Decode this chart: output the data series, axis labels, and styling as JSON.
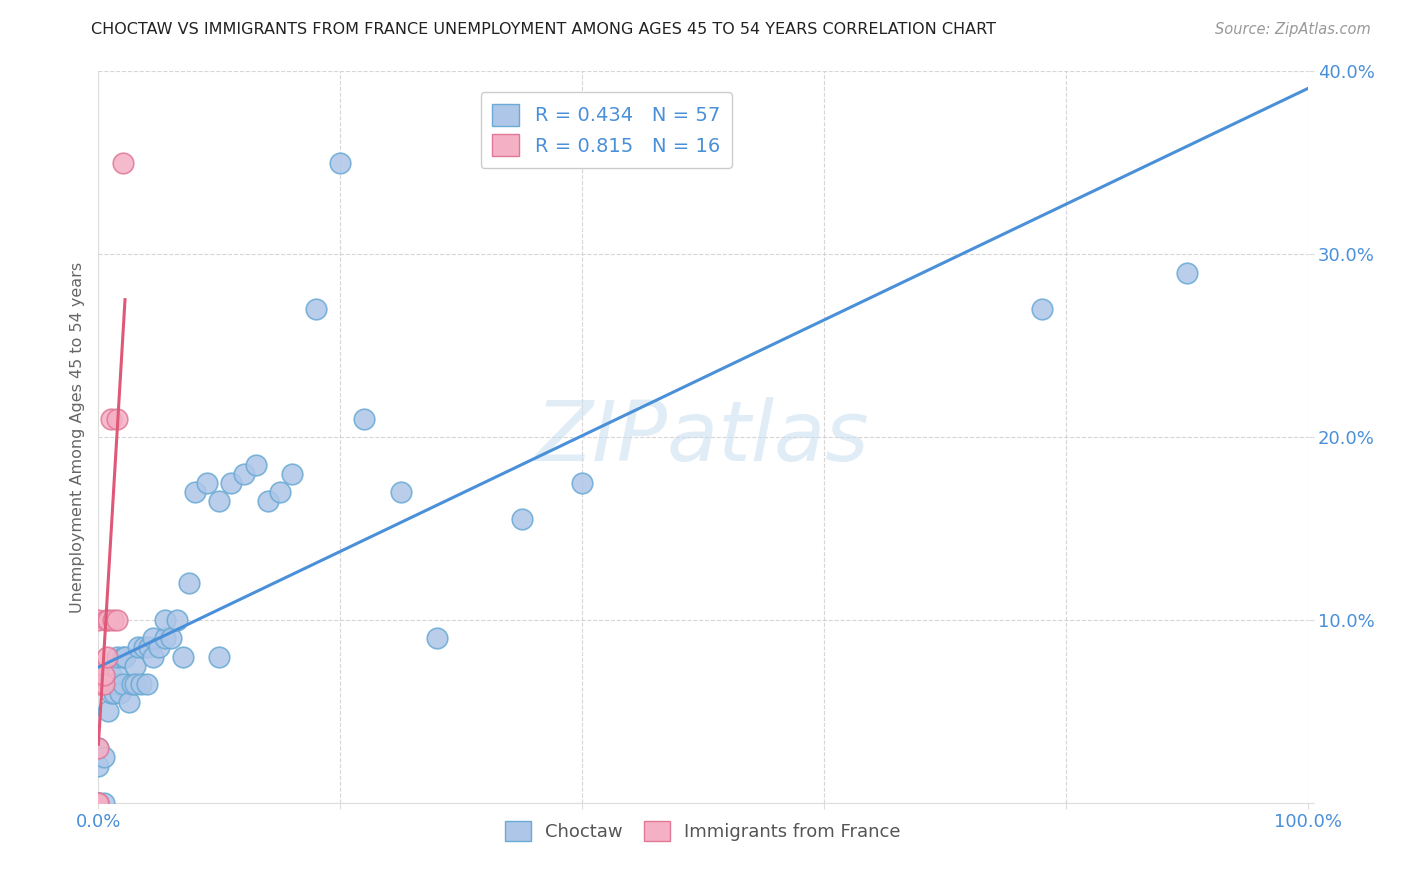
{
  "title": "CHOCTAW VS IMMIGRANTS FROM FRANCE UNEMPLOYMENT AMONG AGES 45 TO 54 YEARS CORRELATION CHART",
  "source": "Source: ZipAtlas.com",
  "ylabel": "Unemployment Among Ages 45 to 54 years",
  "xlim": [
    0,
    1.0
  ],
  "ylim": [
    0,
    0.4
  ],
  "xtick_values": [
    0.0,
    0.2,
    0.4,
    0.6,
    0.8,
    1.0
  ],
  "xticklabels": [
    "0.0%",
    "",
    "",
    "",
    "",
    "100.0%"
  ],
  "ytick_values": [
    0.0,
    0.1,
    0.2,
    0.3,
    0.4
  ],
  "yticklabels_right": [
    "",
    "10.0%",
    "20.0%",
    "30.0%",
    "40.0%"
  ],
  "background_color": "#ffffff",
  "grid_color": "#cccccc",
  "choctaw_color": "#aec6e8",
  "choctaw_edge_color": "#6aaad4",
  "france_color": "#f4b0c4",
  "france_edge_color": "#e07898",
  "choctaw_line_color": "#4a90d9",
  "france_line_color": "#e05878",
  "tick_color": "#4a90d9",
  "watermark_text": "ZIPatlas",
  "watermark_color": "#c8ddf0",
  "choctaw_label": "Choctaw",
  "france_label": "Immigrants from France",
  "choctaw_R": 0.434,
  "choctaw_N": 57,
  "france_R": 0.815,
  "france_N": 16,
  "choctaw_x": [
    0.0,
    0.0,
    0.0,
    0.0,
    0.0,
    0.005,
    0.005,
    0.008,
    0.009,
    0.01,
    0.01,
    0.012,
    0.013,
    0.015,
    0.015,
    0.015,
    0.018,
    0.02,
    0.02,
    0.022,
    0.025,
    0.028,
    0.03,
    0.03,
    0.033,
    0.035,
    0.038,
    0.04,
    0.042,
    0.045,
    0.045,
    0.05,
    0.055,
    0.055,
    0.06,
    0.065,
    0.07,
    0.075,
    0.08,
    0.09,
    0.1,
    0.1,
    0.11,
    0.12,
    0.13,
    0.14,
    0.15,
    0.16,
    0.18,
    0.2,
    0.22,
    0.25,
    0.28,
    0.35,
    0.4,
    0.78,
    0.9
  ],
  "choctaw_y": [
    0.0,
    0.0,
    0.0,
    0.02,
    0.03,
    0.0,
    0.025,
    0.05,
    0.065,
    0.06,
    0.07,
    0.065,
    0.06,
    0.065,
    0.07,
    0.08,
    0.06,
    0.065,
    0.08,
    0.08,
    0.055,
    0.065,
    0.075,
    0.065,
    0.085,
    0.065,
    0.085,
    0.065,
    0.085,
    0.08,
    0.09,
    0.085,
    0.09,
    0.1,
    0.09,
    0.1,
    0.08,
    0.12,
    0.17,
    0.175,
    0.08,
    0.165,
    0.175,
    0.18,
    0.185,
    0.165,
    0.17,
    0.18,
    0.27,
    0.35,
    0.21,
    0.17,
    0.09,
    0.155,
    0.175,
    0.27,
    0.29
  ],
  "france_x": [
    0.0,
    0.0,
    0.0,
    0.0,
    0.0,
    0.0,
    0.005,
    0.005,
    0.006,
    0.007,
    0.008,
    0.01,
    0.012,
    0.015,
    0.015,
    0.02
  ],
  "france_y": [
    0.0,
    0.0,
    0.03,
    0.065,
    0.07,
    0.1,
    0.065,
    0.07,
    0.1,
    0.08,
    0.1,
    0.21,
    0.1,
    0.1,
    0.21,
    0.35
  ],
  "france_line_x_end": 0.022
}
